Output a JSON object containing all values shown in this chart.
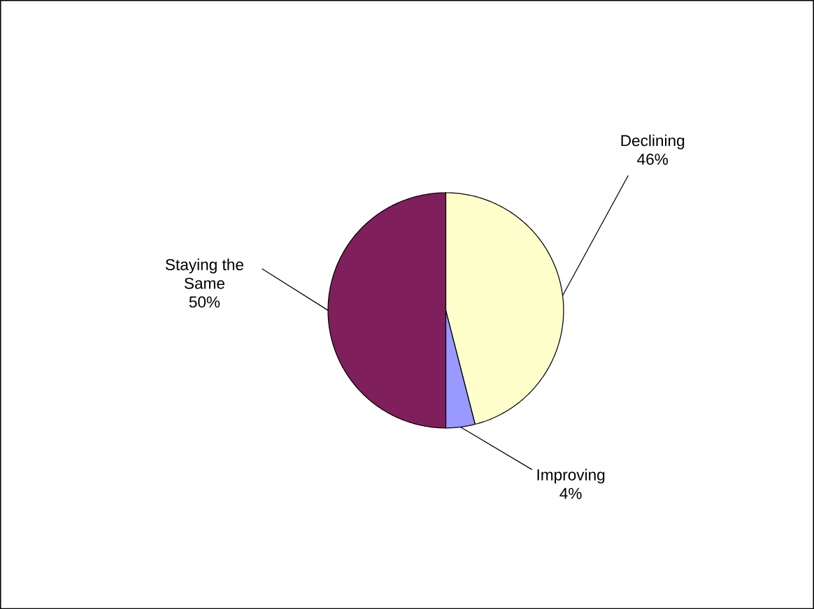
{
  "chart_data": {
    "type": "pie",
    "categories": [
      "Declining",
      "Improving",
      "Staying the Same"
    ],
    "values": [
      46,
      4,
      50
    ],
    "value_labels": [
      "46%",
      "4%",
      "50%"
    ],
    "colors": [
      "#ffffcc",
      "#9999ff",
      "#7f1f5c"
    ],
    "legend": false
  }
}
